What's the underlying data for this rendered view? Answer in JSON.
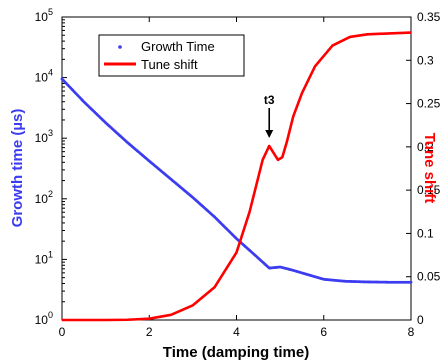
{
  "chart_data": {
    "type": "line",
    "xlabel": "Time  (damping time)",
    "ylabel_left": "Growth time (µs)",
    "ylabel_right": "Tune shift",
    "xlim": [
      0,
      8
    ],
    "ylim_left": [
      1,
      100000
    ],
    "ylim_right": [
      0,
      0.35
    ],
    "left_scale": "log",
    "x_ticks": [
      "0",
      "2",
      "4",
      "6",
      "8"
    ],
    "left_ticks": [
      {
        "base": "10",
        "exp": "0"
      },
      {
        "base": "10",
        "exp": "1"
      },
      {
        "base": "10",
        "exp": "2"
      },
      {
        "base": "10",
        "exp": "3"
      },
      {
        "base": "10",
        "exp": "4"
      },
      {
        "base": "10",
        "exp": "5"
      }
    ],
    "right_ticks": [
      "0",
      "0.05",
      "0.1",
      "0.15",
      "0.2",
      "0.25",
      "0.3",
      "0.35"
    ],
    "legend": {
      "placement": "top-left",
      "entries": [
        "Growth Time",
        "Tune shift"
      ]
    },
    "annotation": {
      "text": "t3",
      "x": 4.75
    },
    "series": [
      {
        "name": "Growth Time",
        "axis": "left",
        "color": "#3c3cf0",
        "style": "dots",
        "x": [
          0,
          0.5,
          1,
          1.5,
          2,
          2.5,
          3,
          3.5,
          4,
          4.5,
          4.75,
          4.85,
          5.0,
          5.3,
          5.6,
          6.0,
          6.5,
          7.0,
          7.5,
          8.0
        ],
        "y": [
          9500,
          4000,
          1800,
          850,
          420,
          210,
          105,
          50,
          22,
          10.5,
          7.2,
          7.3,
          7.5,
          6.6,
          5.7,
          4.7,
          4.35,
          4.25,
          4.2,
          4.2
        ]
      },
      {
        "name": "Tune shift",
        "axis": "right",
        "color": "#ff0000",
        "style": "line",
        "x": [
          0,
          1,
          1.5,
          2,
          2.5,
          3,
          3.5,
          4,
          4.3,
          4.6,
          4.75,
          4.85,
          4.95,
          5.05,
          5.15,
          5.3,
          5.5,
          5.8,
          6.2,
          6.6,
          7.0,
          7.5,
          8.0
        ],
        "y": [
          0,
          0,
          0.0003,
          0.0015,
          0.006,
          0.017,
          0.038,
          0.078,
          0.125,
          0.185,
          0.201,
          0.193,
          0.185,
          0.188,
          0.205,
          0.235,
          0.262,
          0.293,
          0.317,
          0.327,
          0.33,
          0.331,
          0.332
        ]
      }
    ]
  }
}
